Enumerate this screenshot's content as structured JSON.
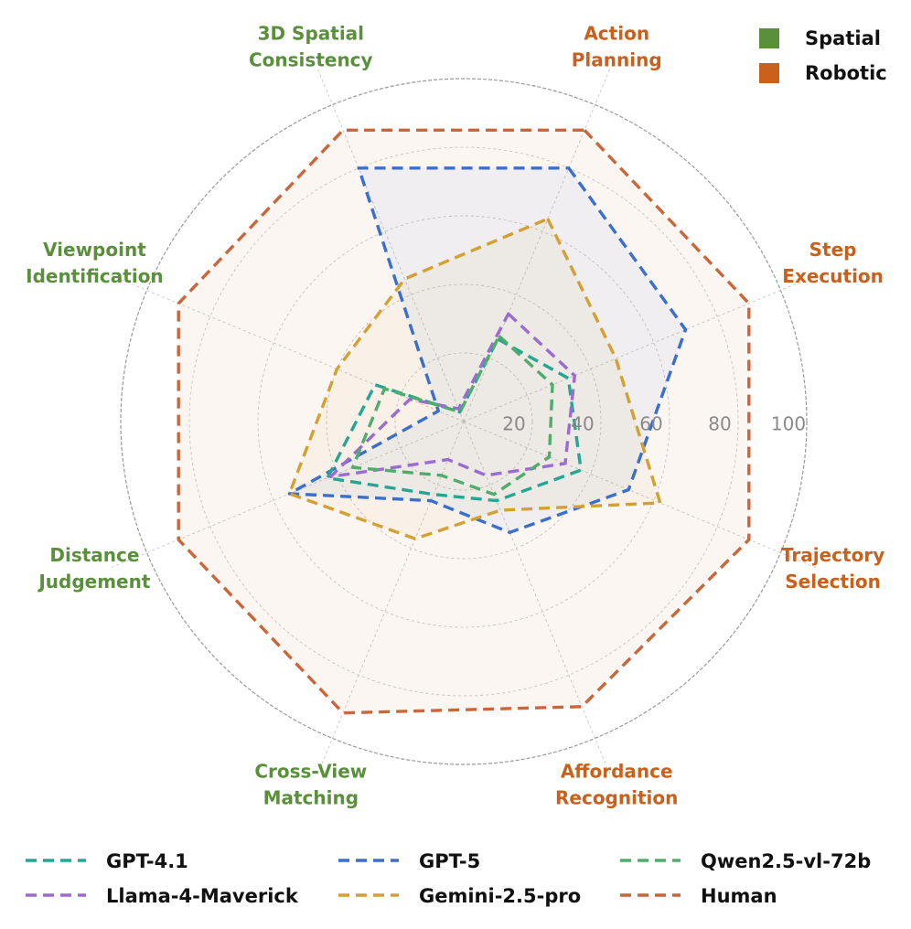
{
  "colors": {
    "spatial": "#5a8f3c",
    "robotic": "#c9601b"
  },
  "chart_data": {
    "type": "radar",
    "rmax": 100,
    "ticks": [
      "20",
      "40",
      "60",
      "80",
      "100"
    ],
    "tick_values": [
      20,
      40,
      60,
      80,
      100
    ],
    "axes": [
      {
        "label": [
          "Action",
          "Planning"
        ],
        "group": "robotic"
      },
      {
        "label": [
          "Step",
          "Execution"
        ],
        "group": "robotic"
      },
      {
        "label": [
          "Trajectory",
          "Selection"
        ],
        "group": "robotic"
      },
      {
        "label": [
          "Affordance",
          "Recognition"
        ],
        "group": "robotic"
      },
      {
        "label": [
          "Cross-View",
          "Matching"
        ],
        "group": "spatial"
      },
      {
        "label": [
          "Distance",
          "Judgement"
        ],
        "group": "spatial"
      },
      {
        "label": [
          "Viewpoint",
          "Identification"
        ],
        "group": "spatial"
      },
      {
        "label": [
          "3D Spatial",
          "Consistency"
        ],
        "group": "spatial"
      }
    ],
    "category_legend": [
      {
        "label": "Spatial",
        "color": "#5a8f3c"
      },
      {
        "label": "Robotic",
        "color": "#c9601b"
      }
    ],
    "series": [
      {
        "name": "Human",
        "color": "#c9663a",
        "fill": true,
        "values": [
          92,
          90,
          90,
          90,
          92,
          90,
          90,
          92
        ]
      },
      {
        "name": "GPT-5",
        "color": "#3a6fcc",
        "fill": true,
        "values": [
          80,
          70,
          52,
          35,
          25,
          55,
          8,
          80
        ]
      },
      {
        "name": "Gemini-2.5-pro",
        "color": "#d3a032",
        "fill": true,
        "values": [
          64,
          48,
          62,
          28,
          37,
          55,
          40,
          45
        ]
      },
      {
        "name": "GPT-4.1",
        "color": "#27a594",
        "fill": false,
        "values": [
          26,
          33,
          37,
          25,
          23,
          43,
          28,
          3
        ]
      },
      {
        "name": "Llama-4-Maverick",
        "color": "#9b6bd3",
        "fill": false,
        "values": [
          34,
          35,
          32,
          17,
          12,
          42,
          17,
          4
        ]
      },
      {
        "name": "Qwen2.5-vl-72b",
        "color": "#4ead6b",
        "fill": false,
        "values": [
          27,
          28,
          27,
          23,
          17,
          35,
          25,
          3
        ]
      }
    ],
    "series_legend": [
      {
        "name": "GPT-4.1",
        "color": "#27a594"
      },
      {
        "name": "GPT-5",
        "color": "#3a6fcc"
      },
      {
        "name": "Qwen2.5-vl-72b",
        "color": "#4ead6b"
      },
      {
        "name": "Llama-4-Maverick",
        "color": "#9b6bd3"
      },
      {
        "name": "Gemini-2.5-pro",
        "color": "#d3a032"
      },
      {
        "name": "Human",
        "color": "#c9663a"
      }
    ]
  }
}
